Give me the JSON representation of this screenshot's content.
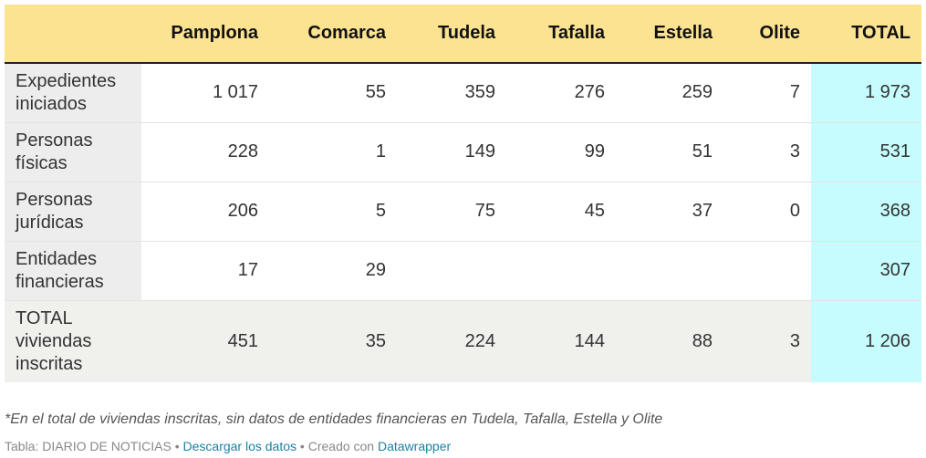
{
  "table": {
    "corner": "",
    "columns": [
      "Pamplona",
      "Comarca",
      "Tudela",
      "Tafalla",
      "Estella",
      "Olite",
      "TOTAL"
    ],
    "rows": [
      {
        "label": "Expedientes iniciados",
        "cells": [
          "1 017",
          "55",
          "359",
          "276",
          "259",
          "7",
          "1 973"
        ]
      },
      {
        "label": "Personas físicas",
        "cells": [
          "228",
          "1",
          "149",
          "99",
          "51",
          "3",
          "531"
        ]
      },
      {
        "label": "Personas jurídicas",
        "cells": [
          "206",
          "5",
          "75",
          "45",
          "37",
          "0",
          "368"
        ]
      },
      {
        "label": "Entidades financieras",
        "cells": [
          "17",
          "29",
          "",
          "",
          "",
          "",
          "307"
        ]
      },
      {
        "label": "TOTAL viviendas inscritas",
        "cells": [
          "451",
          "35",
          "224",
          "144",
          "88",
          "3",
          "1 206"
        ]
      }
    ]
  },
  "note": "*En el total de viviendas inscritas, sin datos de entidades financieras en Tudela, Tafalla, Estella y Olite",
  "footer": {
    "source": "Tabla: DIARIO DE NOTICIAS",
    "sep1": " • ",
    "download": "Descargar los datos",
    "sep2": " • ",
    "created": "Creado con ",
    "tool": "Datawrapper"
  },
  "colors": {
    "header_bg": "#fce391",
    "total_column_bg": "#c6fcfd",
    "label_column_bg": "#ededed",
    "link": "#1d81a2"
  }
}
